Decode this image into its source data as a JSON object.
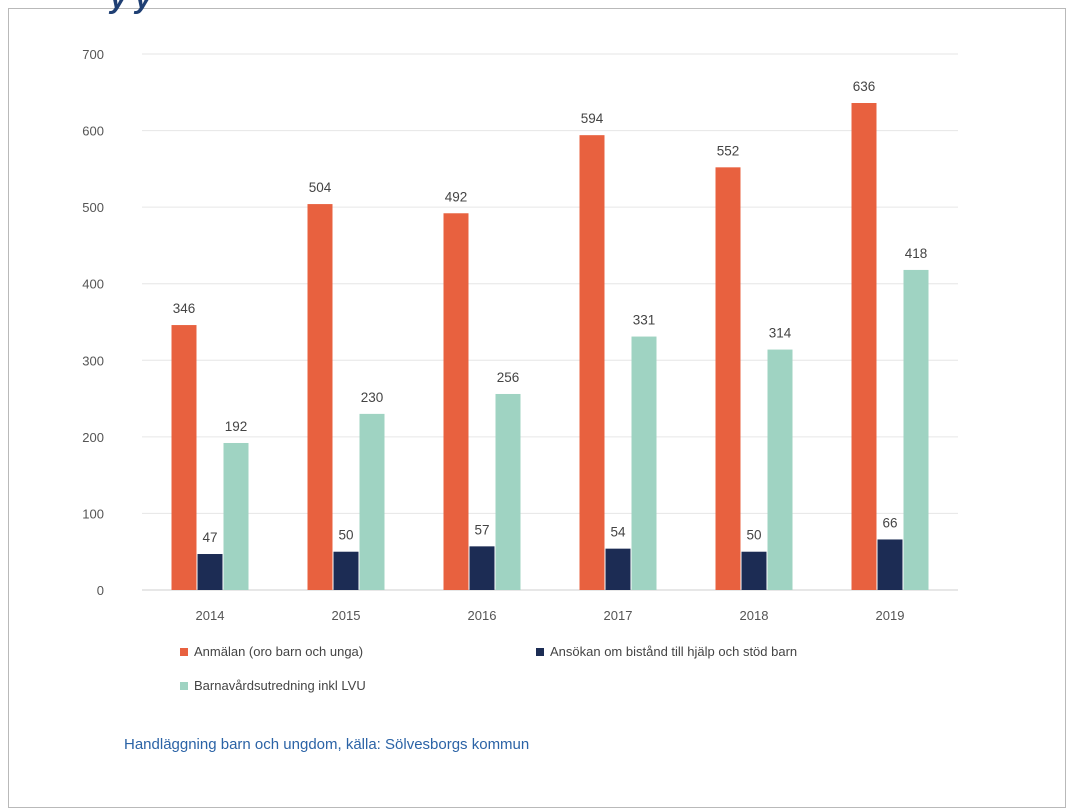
{
  "header": {
    "cropped_title": "y  y"
  },
  "caption": "Handläggning barn och ungdom, källa: Sölvesborgs kommun",
  "colors": {
    "Anmälan (oro barn och unga)": "#e8613f",
    "Ansökan om bistånd till hjälp och stöd barn": "#1c2c54",
    "Barnavårdsutredning inkl LVU": "#9fd3c2"
  },
  "chart_data": {
    "type": "bar",
    "categories": [
      "2014",
      "2015",
      "2016",
      "2017",
      "2018",
      "2019"
    ],
    "series": [
      {
        "name": "Anmälan (oro barn och unga)",
        "values": [
          346,
          504,
          492,
          594,
          552,
          636
        ]
      },
      {
        "name": "Ansökan om bistånd till hjälp och stöd barn",
        "values": [
          47,
          50,
          57,
          54,
          50,
          66
        ]
      },
      {
        "name": "Barnavårdsutredning inkl LVU",
        "values": [
          192,
          230,
          256,
          331,
          314,
          418
        ]
      }
    ],
    "title": "",
    "xlabel": "",
    "ylabel": "",
    "ylim": [
      0,
      700
    ],
    "yticks": [
      0,
      100,
      200,
      300,
      400,
      500,
      600,
      700
    ],
    "grid": true,
    "legend_position": "bottom"
  }
}
